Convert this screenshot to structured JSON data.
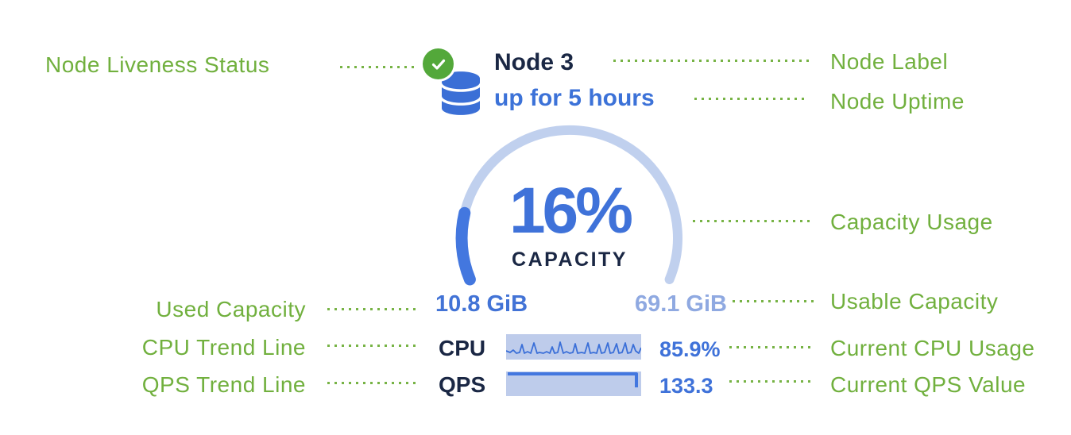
{
  "diagram": {
    "left_annotations": [
      "Node Liveness Status",
      "Used Capacity",
      "CPU Trend Line",
      "QPS Trend Line"
    ],
    "right_annotations": [
      "Node Label",
      "Node Uptime",
      "Capacity Usage",
      "Usable Capacity",
      "Current CPU Usage",
      "Current QPS Value"
    ]
  },
  "node": {
    "label": "Node 3",
    "uptime": "up for 5 hours"
  },
  "gauge": {
    "percent": 16,
    "percent_label": "16%",
    "caption": "CAPACITY",
    "used": "10.8 GiB",
    "usable": "69.1 GiB",
    "start_angle_deg": 202.5,
    "sweep_deg": 225
  },
  "metrics": {
    "cpu_label": "CPU",
    "cpu_value": "85.9%",
    "qps_label": "QPS",
    "qps_value": "133.3"
  },
  "icons": {
    "liveness": "check-circle-icon",
    "node": "database-icon"
  },
  "colors": {
    "annotation_green": "#71B03E",
    "status_green": "#53A83A",
    "accent_blue": "#3C72D8",
    "gauge_fill_blue": "#4377DF",
    "gauge_track_blue": "#C0D0EE",
    "muted_blue": "#8FA9E1",
    "sparkline_bg": "#BECCEB",
    "navy_text": "#1A2744"
  },
  "chart_data": [
    {
      "type": "line",
      "name": "cpu-trend-sparkline",
      "label": "CPU",
      "current_value": "85.9%",
      "x_range": [
        0,
        170
      ],
      "y_range": [
        0,
        32
      ],
      "points": [
        [
          0,
          21
        ],
        [
          5,
          23
        ],
        [
          9,
          20
        ],
        [
          13,
          24
        ],
        [
          17,
          23
        ],
        [
          20,
          13
        ],
        [
          23,
          24
        ],
        [
          27,
          22
        ],
        [
          31,
          24
        ],
        [
          35,
          11
        ],
        [
          39,
          24
        ],
        [
          42,
          23
        ],
        [
          47,
          24
        ],
        [
          51,
          22
        ],
        [
          55,
          24
        ],
        [
          58,
          16
        ],
        [
          61,
          24
        ],
        [
          65,
          23
        ],
        [
          68,
          10
        ],
        [
          72,
          24
        ],
        [
          76,
          22
        ],
        [
          80,
          24
        ],
        [
          84,
          23
        ],
        [
          87,
          12
        ],
        [
          90,
          24
        ],
        [
          95,
          23
        ],
        [
          99,
          24
        ],
        [
          103,
          11
        ],
        [
          106,
          24
        ],
        [
          110,
          23
        ],
        [
          114,
          24
        ],
        [
          117,
          13
        ],
        [
          120,
          24
        ],
        [
          124,
          23
        ],
        [
          128,
          11
        ],
        [
          131,
          24
        ],
        [
          135,
          23
        ],
        [
          139,
          12
        ],
        [
          142,
          24
        ],
        [
          146,
          23
        ],
        [
          150,
          11
        ],
        [
          153,
          24
        ],
        [
          157,
          23
        ],
        [
          160,
          13
        ],
        [
          163,
          21
        ],
        [
          167,
          24
        ],
        [
          170,
          17
        ]
      ]
    },
    {
      "type": "line",
      "name": "qps-trend-sparkline",
      "label": "QPS",
      "current_value": "133.3",
      "x_range": [
        0,
        170
      ],
      "y_range": [
        0,
        31
      ],
      "description": "flat line at maximum with drop at right edge",
      "points": [
        [
          2,
          3
        ],
        [
          164,
          3
        ],
        [
          164,
          20
        ]
      ]
    },
    {
      "type": "gauge",
      "name": "capacity-gauge",
      "value_percent": 16,
      "caption": "CAPACITY",
      "min_label": "10.8 GiB",
      "max_label": "69.1 GiB"
    }
  ]
}
